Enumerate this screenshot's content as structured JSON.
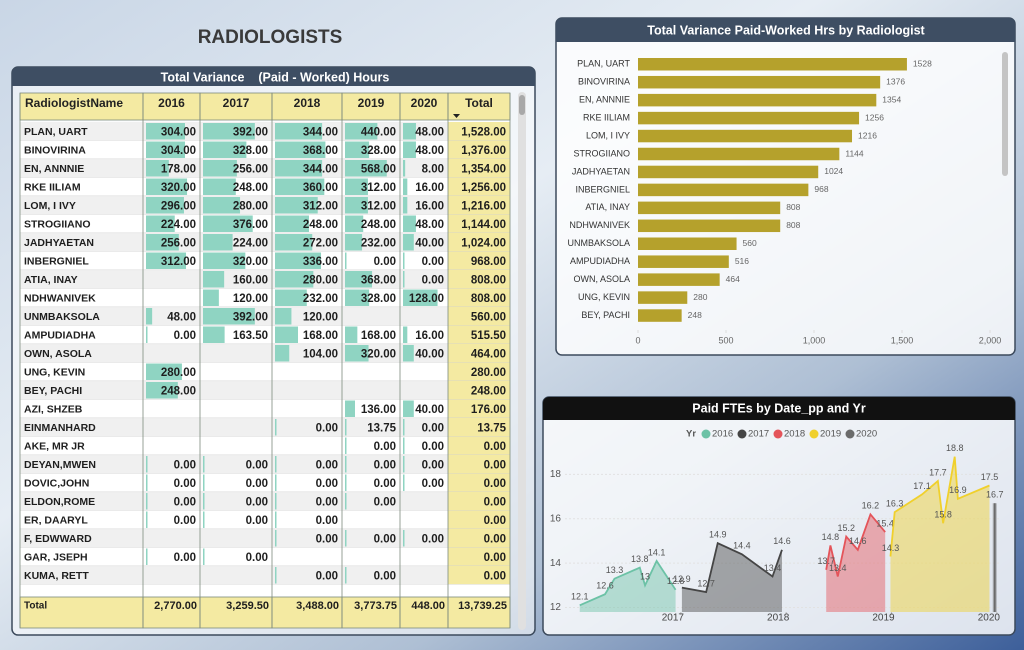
{
  "title": "RADIOLOGISTS",
  "table": {
    "title": "Total Variance    (Paid - Worked) Hours",
    "columns": [
      "RadiologistName",
      "2016",
      "2017",
      "2018",
      "2019",
      "2020",
      "Total"
    ],
    "rows": [
      [
        "PLAN, UART",
        "304.00",
        "392.00",
        "344.00",
        "440.00",
        "48.00",
        "1,528.00"
      ],
      [
        "BINOVIRINA",
        "304.00",
        "328.00",
        "368.00",
        "328.00",
        "48.00",
        "1,376.00"
      ],
      [
        "EN, ANNNIE",
        "178.00",
        "256.00",
        "344.00",
        "568.00",
        "8.00",
        "1,354.00"
      ],
      [
        "RKE IILIAM",
        "320.00",
        "248.00",
        "360.00",
        "312.00",
        "16.00",
        "1,256.00"
      ],
      [
        "LOM, I IVY",
        "296.00",
        "280.00",
        "312.00",
        "312.00",
        "16.00",
        "1,216.00"
      ],
      [
        "STROGIIANO",
        "224.00",
        "376.00",
        "248.00",
        "248.00",
        "48.00",
        "1,144.00"
      ],
      [
        "JADHYAETAN",
        "256.00",
        "224.00",
        "272.00",
        "232.00",
        "40.00",
        "1,024.00"
      ],
      [
        "INBERGNIEL",
        "312.00",
        "320.00",
        "336.00",
        "0.00",
        "0.00",
        "968.00"
      ],
      [
        "ATIA, INAY",
        null,
        "160.00",
        "280.00",
        "368.00",
        "0.00",
        "808.00"
      ],
      [
        "NDHWANIVEK",
        null,
        "120.00",
        "232.00",
        "328.00",
        "128.00",
        "808.00"
      ],
      [
        "UNMBAKSOLA",
        "48.00",
        "392.00",
        "120.00",
        null,
        null,
        "560.00"
      ],
      [
        "AMPUDIADHA",
        "0.00",
        "163.50",
        "168.00",
        "168.00",
        "16.00",
        "515.50"
      ],
      [
        "OWN, ASOLA",
        null,
        null,
        "104.00",
        "320.00",
        "40.00",
        "464.00"
      ],
      [
        "UNG, KEVIN",
        "280.00",
        null,
        null,
        null,
        null,
        "280.00"
      ],
      [
        "BEY, PACHI",
        "248.00",
        null,
        null,
        null,
        null,
        "248.00"
      ],
      [
        "AZI, SHZEB",
        null,
        null,
        null,
        "136.00",
        "40.00",
        "176.00"
      ],
      [
        "EINMANHARD",
        null,
        null,
        "0.00",
        "13.75",
        "0.00",
        "13.75"
      ],
      [
        "AKE, MR JR",
        null,
        null,
        null,
        "0.00",
        "0.00",
        "0.00"
      ],
      [
        "DEYAN,MWEN",
        "0.00",
        "0.00",
        "0.00",
        "0.00",
        "0.00",
        "0.00"
      ],
      [
        "DOVIC,JOHN",
        "0.00",
        "0.00",
        "0.00",
        "0.00",
        "0.00",
        "0.00"
      ],
      [
        "ELDON,ROME",
        "0.00",
        "0.00",
        "0.00",
        "0.00",
        null,
        "0.00"
      ],
      [
        "ER, DAARYL",
        "0.00",
        "0.00",
        "0.00",
        null,
        null,
        "0.00"
      ],
      [
        "F, EDWWARD",
        null,
        null,
        "0.00",
        "0.00",
        "0.00",
        "0.00"
      ],
      [
        "GAR, JSEPH",
        "0.00",
        "0.00",
        null,
        null,
        null,
        "0.00"
      ],
      [
        "KUMA, RETT",
        null,
        null,
        "0.00",
        "0.00",
        null,
        "0.00"
      ]
    ],
    "footer": [
      "Total",
      "2,770.00",
      "3,259.50",
      "3,488.00",
      "3,773.75",
      "448.00",
      "13,739.25"
    ]
  },
  "chart_data": [
    {
      "type": "bar",
      "orientation": "horizontal",
      "title": "Total Variance Paid-Worked Hrs by Radiologist",
      "categories": [
        "PLAN, UART",
        "BINOVIRINA",
        "EN, ANNNIE",
        "RKE IILIAM",
        "LOM, I IVY",
        "STROGIIANO",
        "JADHYAETAN",
        "INBERGNIEL",
        "ATIA, INAY",
        "NDHWANIVEK",
        "UNMBAKSOLA",
        "AMPUDIADHA",
        "OWN, ASOLA",
        "UNG, KEVIN",
        "BEY, PACHI"
      ],
      "values": [
        1528,
        1376,
        1354,
        1256,
        1216,
        1144,
        1024,
        968,
        808,
        808,
        560,
        516,
        464,
        280,
        248
      ],
      "color": "#b5a12c",
      "xlim": [
        0,
        2000
      ],
      "xticks": [
        0,
        500,
        {
          "value": 1000,
          "label": "1,000"
        },
        {
          "value": 1500,
          "label": "1,500"
        },
        {
          "value": 2000,
          "label": "2,000"
        }
      ]
    },
    {
      "type": "line",
      "title": "Paid FTEs by Date_pp and Yr",
      "legend_title": "Yr",
      "area": true,
      "xlim": [
        2015.9,
        2020.03
      ],
      "xticks": [
        2017,
        2018,
        2019,
        2020
      ],
      "ylim": [
        11.8,
        19.1
      ],
      "yticks": [
        12,
        14,
        16,
        18
      ],
      "series": [
        {
          "name": "2016",
          "color": "#6cc2a6",
          "x": [
            2016.04,
            2016.28,
            2016.37,
            2016.61,
            2016.66,
            2016.77,
            2016.95
          ],
          "values": [
            12.1,
            12.6,
            13.3,
            13.8,
            13.0,
            14.1,
            12.8
          ]
        },
        {
          "name": "2017",
          "color": "#454545",
          "x": [
            2017.01,
            2017.24,
            2017.35,
            2017.58,
            2017.87,
            2017.96
          ],
          "values": [
            12.9,
            12.7,
            14.9,
            14.4,
            13.4,
            14.6
          ]
        },
        {
          "name": "2018",
          "color": "#e4545a",
          "x": [
            2018.38,
            2018.42,
            2018.49,
            2018.57,
            2018.68,
            2018.8,
            2018.94
          ],
          "values": [
            13.7,
            14.8,
            13.4,
            15.2,
            14.6,
            16.2,
            15.4
          ]
        },
        {
          "name": "2019",
          "color": "#f0d02c",
          "x": [
            2018.99,
            2019.03,
            2019.29,
            2019.44,
            2019.49,
            2019.6,
            2019.63,
            2019.93
          ],
          "values": [
            14.3,
            16.3,
            17.1,
            17.7,
            15.8,
            18.8,
            16.9,
            17.5
          ]
        },
        {
          "name": "2020",
          "color": "#6b6b6b",
          "x": [
            2019.98
          ],
          "values": [
            16.7
          ]
        }
      ]
    }
  ]
}
